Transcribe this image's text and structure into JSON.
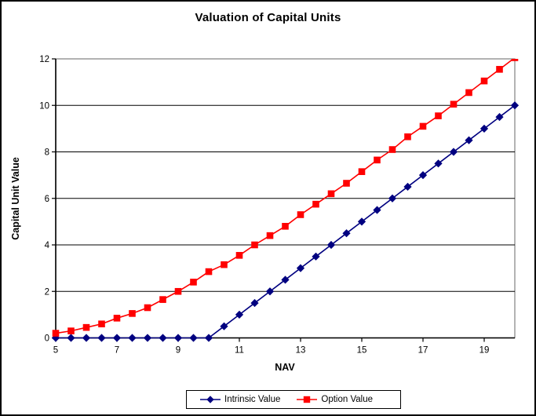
{
  "chart_data": {
    "type": "line",
    "title": "Valuation of Capital Units",
    "xlabel": "NAV",
    "ylabel": "Capital Unit Value",
    "xlim": [
      5,
      20
    ],
    "ylim": [
      0,
      12
    ],
    "xticks": [
      5,
      7,
      9,
      11,
      13,
      15,
      17,
      19
    ],
    "yticks": [
      0,
      2,
      4,
      6,
      8,
      10,
      12
    ],
    "grid": "horizontal-major-on",
    "legend_position": "bottom-center-boxed",
    "x": [
      5,
      5.5,
      6,
      6.5,
      7,
      7.5,
      8,
      8.5,
      9,
      9.5,
      10,
      10.5,
      11,
      11.5,
      12,
      12.5,
      13,
      13.5,
      14,
      14.5,
      15,
      15.5,
      16,
      16.5,
      17,
      17.5,
      18,
      18.5,
      19,
      19.5,
      20
    ],
    "series": [
      {
        "name": "Intrinsic Value",
        "color": "#000080",
        "marker": "diamond",
        "values": [
          0,
          0,
          0,
          0,
          0,
          0,
          0,
          0,
          0,
          0,
          0,
          0.5,
          1,
          1.5,
          2,
          2.5,
          3,
          3.5,
          4,
          4.5,
          5,
          5.5,
          6,
          6.5,
          7,
          7.5,
          8,
          8.5,
          9,
          9.5,
          10
        ]
      },
      {
        "name": "Option Value",
        "color": "#FF0000",
        "marker": "square",
        "values": [
          0.2,
          0.3,
          0.45,
          0.6,
          0.85,
          1.05,
          1.3,
          1.65,
          2.0,
          2.4,
          2.85,
          3.15,
          3.55,
          4.0,
          4.4,
          4.8,
          5.3,
          5.75,
          6.2,
          6.65,
          7.15,
          7.65,
          8.1,
          8.65,
          9.1,
          9.55,
          10.05,
          10.55,
          11.05,
          11.55,
          12.05
        ]
      }
    ]
  },
  "style": {
    "gridline_color": "#000000",
    "plot_border_color": "#808080",
    "axis_color": "#000000",
    "background": "#FFFFFF"
  }
}
